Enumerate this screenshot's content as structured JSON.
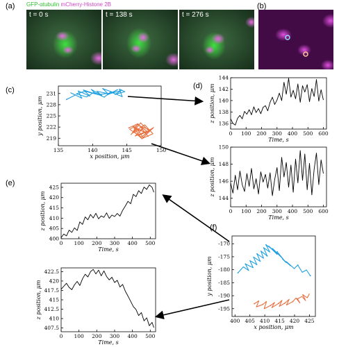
{
  "figure": {
    "panel_labels": {
      "a": "(a)",
      "b": "(b)",
      "c": "(c)",
      "d": "(d)",
      "e": "(e)",
      "f": "(f)"
    },
    "header": {
      "green_label": "GFP-αtubulin",
      "magenta_label": "mCherry-Histone 2B"
    },
    "time_stamps": [
      "t = 0 s",
      "t = 138 s",
      "t = 276 s"
    ],
    "colors": {
      "blue": "#1f9fe0",
      "orange": "#e8703f",
      "line": "#000000",
      "green": "#2fbf2f",
      "magenta": "#d046c8"
    }
  },
  "chart_data": [
    {
      "id": "c",
      "type": "scatter",
      "xlabel": "x position, μm",
      "ylabel": "y position, μm",
      "xlim": [
        135,
        150
      ],
      "ylim": [
        217,
        233
      ],
      "xticks": [
        135,
        140,
        145,
        150
      ],
      "yticks": [
        219,
        222,
        225,
        228,
        231
      ],
      "series": [
        {
          "color": "#1f9fe0",
          "x": [
            136.2,
            137.5,
            136.8,
            138.4,
            137.9,
            139.6,
            138.7,
            140.4,
            139.8,
            141.3,
            140.6,
            142.2,
            141.5,
            143.0,
            142.1,
            143.6,
            142.8,
            144.2,
            143.3,
            144.7,
            143.9,
            144.3,
            142.6,
            141.7,
            140.2,
            139.1,
            137.6,
            138.9,
            140.8,
            142.9
          ],
          "y": [
            229.4,
            230.6,
            231.2,
            229.8,
            231.7,
            230.3,
            231.9,
            230.9,
            232.1,
            230.5,
            231.6,
            231.0,
            232.3,
            231.3,
            230.6,
            232.0,
            231.1,
            231.8,
            230.8,
            231.5,
            232.2,
            230.2,
            231.4,
            230.0,
            231.3,
            230.1,
            230.9,
            231.6,
            230.7,
            231.2
          ]
        },
        {
          "color": "#e8703f",
          "x": [
            145.3,
            146.6,
            145.8,
            147.3,
            146.2,
            147.9,
            146.9,
            148.4,
            147.1,
            146.0,
            147.6,
            148.8,
            147.4,
            146.4,
            145.6,
            147.0,
            148.2,
            146.8,
            145.9,
            147.7,
            148.9,
            147.2,
            146.3,
            145.4,
            146.7,
            148.1,
            147.5,
            146.1
          ],
          "y": [
            221.8,
            222.9,
            220.4,
            221.5,
            219.6,
            220.9,
            222.3,
            221.2,
            219.3,
            220.7,
            222.6,
            220.2,
            219.1,
            221.7,
            220.0,
            223.1,
            221.0,
            219.8,
            222.2,
            220.5,
            221.9,
            218.9,
            220.3,
            221.4,
            222.7,
            219.5,
            220.8,
            221.6
          ]
        }
      ]
    },
    {
      "id": "d-top",
      "type": "line",
      "xlabel": "Time, s",
      "ylabel": "z position, μm",
      "xlim": [
        0,
        620
      ],
      "ylim": [
        135,
        144
      ],
      "xticks": [
        0,
        100,
        200,
        300,
        400,
        500,
        600
      ],
      "yticks": [
        136,
        138,
        140,
        142,
        144
      ],
      "series": [
        {
          "color": "#000000",
          "x": [
            0,
            15,
            30,
            45,
            60,
            75,
            90,
            105,
            120,
            135,
            150,
            165,
            180,
            195,
            210,
            225,
            240,
            255,
            270,
            285,
            300,
            315,
            330,
            345,
            360,
            375,
            390,
            405,
            420,
            435,
            450,
            465,
            480,
            495,
            510,
            525,
            540,
            555,
            570,
            585,
            600
          ],
          "y": [
            136.8,
            136.0,
            135.7,
            136.9,
            137.4,
            136.8,
            138.1,
            137.6,
            138.4,
            137.5,
            138.9,
            137.9,
            138.6,
            137.7,
            138.8,
            139.1,
            138.2,
            139.7,
            140.6,
            139.3,
            140.1,
            141.3,
            140.0,
            143.2,
            141.1,
            143.9,
            140.6,
            141.8,
            140.3,
            142.9,
            139.7,
            142.6,
            141.5,
            142.8,
            139.8,
            142.1,
            140.7,
            143.7,
            139.9,
            141.9,
            140.1
          ]
        }
      ]
    },
    {
      "id": "d-bottom",
      "type": "line",
      "xlabel": "Time, s",
      "ylabel": "z position, μm",
      "xlim": [
        0,
        620
      ],
      "ylim": [
        143,
        150
      ],
      "xticks": [
        0,
        100,
        200,
        300,
        400,
        500,
        600
      ],
      "yticks": [
        144,
        146,
        148,
        150
      ],
      "series": [
        {
          "color": "#000000",
          "x": [
            0,
            15,
            30,
            45,
            60,
            75,
            90,
            105,
            120,
            135,
            150,
            165,
            180,
            195,
            210,
            225,
            240,
            255,
            270,
            285,
            300,
            315,
            330,
            345,
            360,
            375,
            390,
            405,
            420,
            435,
            450,
            465,
            480,
            495,
            510,
            525,
            540,
            555,
            570,
            585,
            600
          ],
          "y": [
            145.8,
            144.6,
            146.7,
            145.0,
            147.2,
            145.6,
            144.8,
            146.9,
            145.4,
            147.5,
            145.1,
            146.3,
            144.5,
            147.1,
            145.9,
            146.8,
            145.2,
            147.0,
            144.3,
            146.2,
            147.6,
            144.9,
            148.8,
            146.5,
            148.2,
            145.3,
            147.9,
            144.7,
            148.6,
            145.8,
            149.6,
            146.1,
            149.2,
            145.0,
            148.1,
            144.4,
            147.4,
            149.3,
            145.6,
            148.5,
            146.9
          ]
        }
      ]
    },
    {
      "id": "e-top",
      "type": "line",
      "xlabel": "Time, s",
      "ylabel": "z position, μm",
      "xlim": [
        0,
        530
      ],
      "ylim": [
        400,
        427
      ],
      "xticks": [
        0,
        100,
        200,
        300,
        400,
        500
      ],
      "yticks": [
        400,
        405,
        410,
        415,
        420,
        425
      ],
      "series": [
        {
          "color": "#000000",
          "x": [
            0,
            15,
            30,
            45,
            60,
            75,
            90,
            105,
            120,
            135,
            150,
            165,
            180,
            195,
            210,
            225,
            240,
            255,
            270,
            285,
            300,
            315,
            330,
            345,
            360,
            375,
            390,
            405,
            420,
            435,
            450,
            465,
            480,
            495,
            510,
            520
          ],
          "y": [
            400.5,
            402.3,
            401.4,
            404.2,
            403.1,
            405.3,
            404.0,
            408.2,
            407.0,
            410.6,
            409.2,
            411.8,
            410.1,
            412.4,
            409.7,
            411.1,
            410.4,
            412.6,
            409.9,
            411.5,
            410.8,
            412.3,
            411.0,
            413.8,
            415.9,
            418.2,
            417.0,
            421.6,
            420.5,
            423.4,
            422.0,
            425.1,
            424.0,
            426.2,
            425.0,
            422.6
          ]
        }
      ]
    },
    {
      "id": "e-bottom",
      "type": "line",
      "xlabel": "Time, s",
      "ylabel": "z position, μm",
      "xlim": [
        0,
        530
      ],
      "ylim": [
        406.5,
        423.5
      ],
      "xticks": [
        0,
        100,
        200,
        300,
        400,
        500
      ],
      "yticks": [
        407.5,
        410.0,
        412.5,
        415.0,
        417.5,
        420.0,
        422.5
      ],
      "series": [
        {
          "color": "#000000",
          "x": [
            0,
            15,
            30,
            45,
            60,
            75,
            90,
            105,
            120,
            135,
            150,
            165,
            180,
            195,
            210,
            225,
            240,
            255,
            270,
            285,
            300,
            315,
            330,
            345,
            360,
            375,
            390,
            405,
            420,
            435,
            450,
            465,
            480,
            495,
            510,
            520
          ],
          "y": [
            417.8,
            418.6,
            419.4,
            418.3,
            417.7,
            419.0,
            419.9,
            418.8,
            420.6,
            421.8,
            421.1,
            422.5,
            423.1,
            421.9,
            422.9,
            421.4,
            422.7,
            421.2,
            420.3,
            421.0,
            419.6,
            420.2,
            418.4,
            419.1,
            417.3,
            416.0,
            414.6,
            413.2,
            412.4,
            410.8,
            411.6,
            409.4,
            410.2,
            408.1,
            409.0,
            407.6
          ]
        }
      ]
    },
    {
      "id": "f",
      "type": "scatter",
      "xlabel": "x position, μm",
      "ylabel": "y position, μm",
      "xlim": [
        399,
        427
      ],
      "ylim": [
        -198,
        -167
      ],
      "xticks": [
        400,
        405,
        410,
        415,
        420,
        425
      ],
      "yticks": [
        -170,
        -175,
        -180,
        -185,
        -190,
        -195
      ],
      "series": [
        {
          "color": "#1f9fe0",
          "x": [
            401.0,
            402.8,
            404.6,
            403.5,
            406.1,
            405.0,
            407.3,
            406.2,
            408.5,
            407.4,
            409.6,
            408.7,
            410.8,
            409.6,
            411.7,
            410.4,
            412.9,
            411.3,
            414.1,
            412.6,
            415.8,
            414.2,
            417.1,
            415.9,
            418.6,
            417.3,
            419.9,
            421.1,
            422.6,
            424.0,
            425.3
          ],
          "y": [
            -181.2,
            -178.9,
            -180.3,
            -177.8,
            -179.2,
            -176.5,
            -178.0,
            -175.1,
            -176.8,
            -173.9,
            -175.6,
            -172.8,
            -174.7,
            -171.5,
            -173.2,
            -170.4,
            -172.5,
            -170.9,
            -174.0,
            -171.8,
            -175.5,
            -173.1,
            -177.2,
            -175.8,
            -178.4,
            -176.9,
            -179.6,
            -178.2,
            -181.0,
            -180.1,
            -182.3
          ]
        },
        {
          "color": "#e8703f",
          "x": [
            406.5,
            408.0,
            407.2,
            409.3,
            410.6,
            409.8,
            411.9,
            413.3,
            412.4,
            414.6,
            415.8,
            414.9,
            416.7,
            418.2,
            417.3,
            419.4,
            420.5,
            421.8,
            421.0,
            422.5,
            423.7,
            422.8,
            424.3,
            425.0
          ],
          "y": [
            -193.1,
            -192.0,
            -194.3,
            -193.4,
            -192.2,
            -195.0,
            -193.8,
            -192.6,
            -194.6,
            -193.0,
            -191.8,
            -194.1,
            -192.9,
            -191.4,
            -193.6,
            -192.3,
            -190.9,
            -192.8,
            -191.2,
            -190.3,
            -191.9,
            -189.7,
            -190.8,
            -189.2
          ]
        }
      ]
    }
  ]
}
